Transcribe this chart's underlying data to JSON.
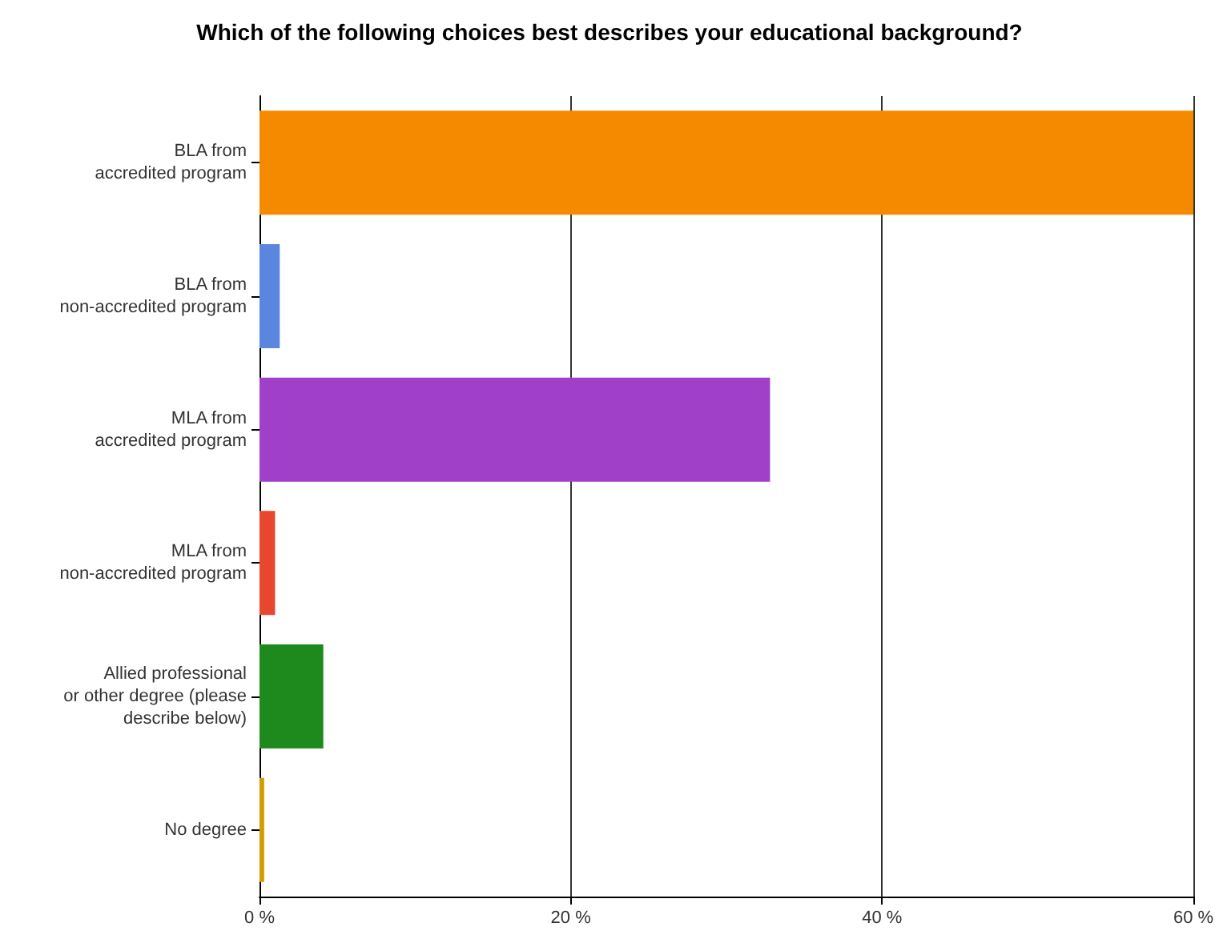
{
  "chart_data": {
    "type": "bar",
    "orientation": "horizontal",
    "title": "Which of the following choices best describes your educational background?",
    "categories": [
      "BLA from\naccredited program",
      "BLA from\nnon-accredited program",
      "MLA from\naccredited program",
      "MLA from\nnon-accredited program",
      "Allied professional\nor other degree (please\ndescribe below)",
      "No degree"
    ],
    "values": [
      60,
      1.3,
      32.8,
      1.0,
      4.1,
      0.3
    ],
    "colors": [
      "#f58a00",
      "#5b86e0",
      "#a040c8",
      "#e8462e",
      "#1e8a1e",
      "#d49a00"
    ],
    "xlim": [
      0,
      60
    ],
    "xticks": [
      {
        "value": 0,
        "label": "0 %"
      },
      {
        "value": 20,
        "label": "20 %"
      },
      {
        "value": 40,
        "label": "40 %"
      },
      {
        "value": 60,
        "label": "60 %"
      }
    ],
    "grid": "x"
  }
}
